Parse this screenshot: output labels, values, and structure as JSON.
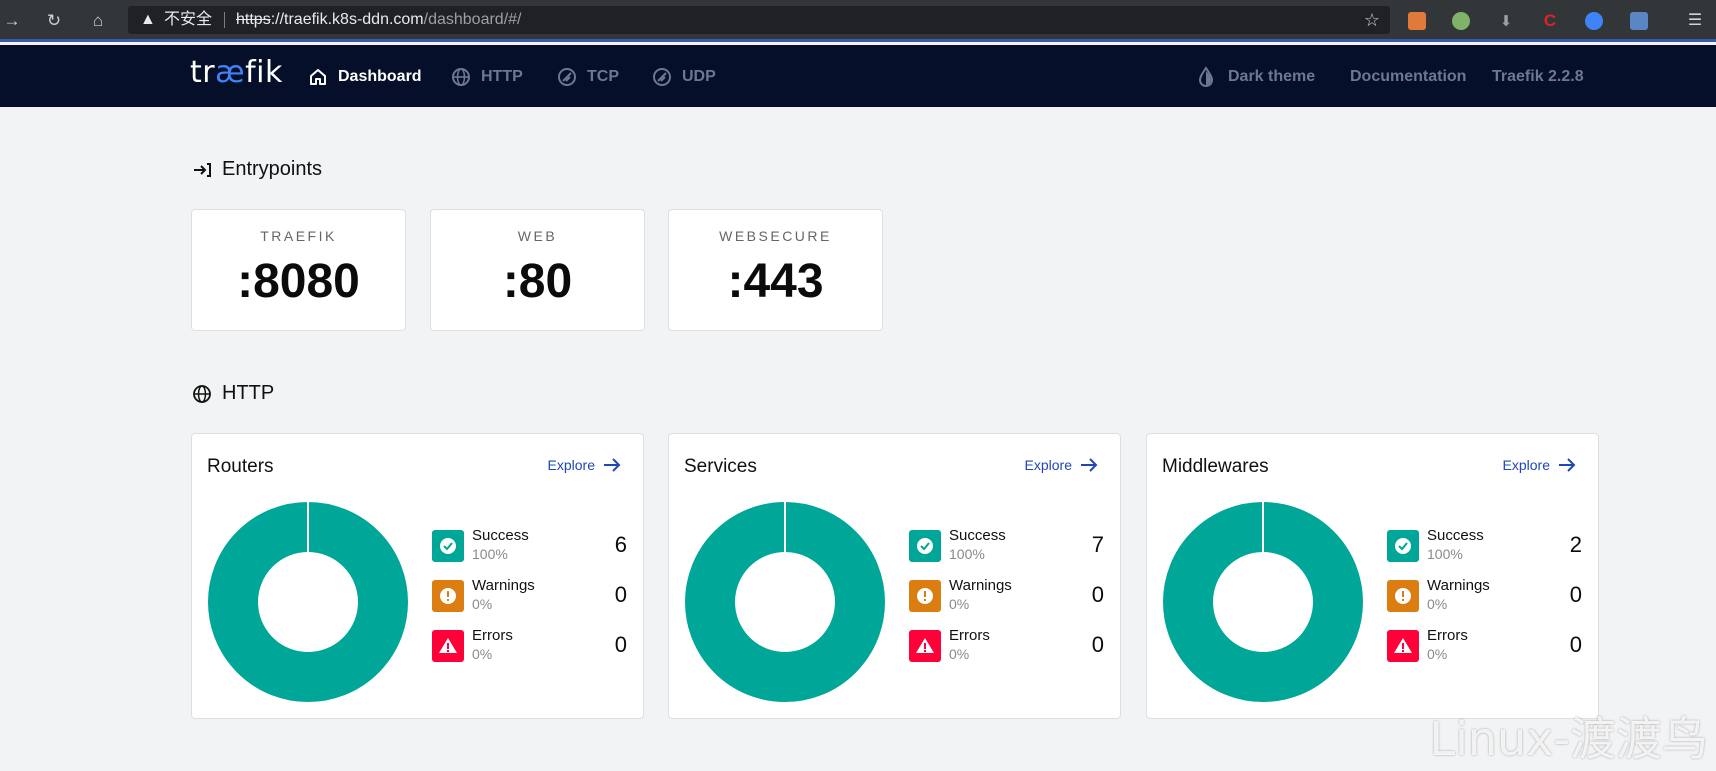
{
  "browser": {
    "security_warning": "不安全",
    "url_scheme": "https",
    "url_host": "://traefik.k8s-ddn.com",
    "url_path": "/dashboard/#/"
  },
  "header": {
    "logo": "traefik",
    "nav": {
      "dashboard": "Dashboard",
      "http": "HTTP",
      "tcp": "TCP",
      "udp": "UDP"
    },
    "dark_theme": "Dark theme",
    "documentation": "Documentation",
    "version": "Traefik 2.2.8"
  },
  "entrypoints": {
    "title": "Entrypoints",
    "items": [
      {
        "name": "TRAEFIK",
        "port": ":8080"
      },
      {
        "name": "WEB",
        "port": ":80"
      },
      {
        "name": "WEBSECURE",
        "port": ":443"
      }
    ]
  },
  "http": {
    "title": "HTTP",
    "explore_label": "Explore",
    "cards": [
      {
        "title": "Routers",
        "success": {
          "label": "Success",
          "pct": "100%",
          "count": "6"
        },
        "warnings": {
          "label": "Warnings",
          "pct": "0%",
          "count": "0"
        },
        "errors": {
          "label": "Errors",
          "pct": "0%",
          "count": "0"
        }
      },
      {
        "title": "Services",
        "success": {
          "label": "Success",
          "pct": "100%",
          "count": "7"
        },
        "warnings": {
          "label": "Warnings",
          "pct": "0%",
          "count": "0"
        },
        "errors": {
          "label": "Errors",
          "pct": "0%",
          "count": "0"
        }
      },
      {
        "title": "Middlewares",
        "success": {
          "label": "Success",
          "pct": "100%",
          "count": "2"
        },
        "warnings": {
          "label": "Warnings",
          "pct": "0%",
          "count": "0"
        },
        "errors": {
          "label": "Errors",
          "pct": "0%",
          "count": "0"
        }
      }
    ]
  },
  "colors": {
    "success": "#00a697",
    "warning": "#db7d11",
    "error": "#ff0039",
    "header_bg": "#050f29",
    "link": "#1f47b8"
  },
  "watermark": "Linux-渡渡鸟"
}
